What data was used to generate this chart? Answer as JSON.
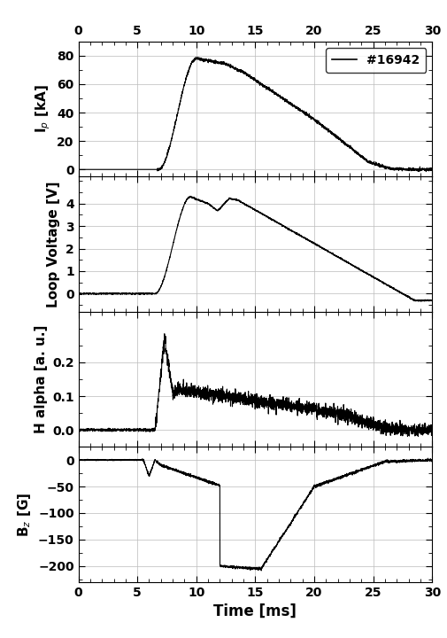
{
  "shot_label": "#16942",
  "time_range": [
    0,
    30
  ],
  "xlabel": "Time [ms]",
  "panel1": {
    "ylabel": "I$_p$ [kA]",
    "ylim": [
      -5,
      90
    ],
    "yticks": [
      0,
      20,
      40,
      60,
      80
    ]
  },
  "panel2": {
    "ylabel": "Loop Voltage [V]",
    "ylim": [
      -0.8,
      5.2
    ],
    "yticks": [
      0,
      1,
      2,
      3,
      4
    ]
  },
  "panel3": {
    "ylabel": "H alpha [a. u.]",
    "ylim": [
      -0.05,
      0.35
    ],
    "yticks": [
      0.0,
      0.1,
      0.2
    ]
  },
  "panel4": {
    "ylabel": "B$_z$ [G]",
    "ylim": [
      -230,
      25
    ],
    "yticks": [
      0,
      -50,
      -100,
      -150,
      -200
    ]
  },
  "line_color": "#000000",
  "grid_color": "#bbbbbb",
  "background": "#ffffff"
}
